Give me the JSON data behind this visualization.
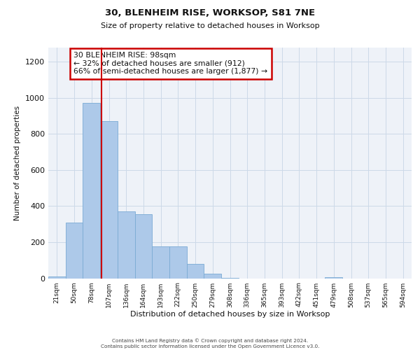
{
  "title_line1": "30, BLENHEIM RISE, WORKSOP, S81 7NE",
  "title_line2": "Size of property relative to detached houses in Worksop",
  "xlabel": "Distribution of detached houses by size in Worksop",
  "ylabel": "Number of detached properties",
  "bar_labels": [
    "21sqm",
    "50sqm",
    "78sqm",
    "107sqm",
    "136sqm",
    "164sqm",
    "193sqm",
    "222sqm",
    "250sqm",
    "279sqm",
    "308sqm",
    "336sqm",
    "365sqm",
    "393sqm",
    "422sqm",
    "451sqm",
    "479sqm",
    "508sqm",
    "537sqm",
    "565sqm",
    "594sqm"
  ],
  "bar_values": [
    10,
    310,
    970,
    870,
    370,
    355,
    175,
    175,
    80,
    25,
    3,
    0,
    0,
    0,
    0,
    0,
    5,
    0,
    0,
    0,
    0
  ],
  "bar_color": "#adc9e9",
  "bar_edge_color": "#7aaad4",
  "grid_color": "#ccd9e8",
  "background_color": "#eef2f8",
  "red_line_x": 2.58,
  "annotation_text": "30 BLENHEIM RISE: 98sqm\n← 32% of detached houses are smaller (912)\n66% of semi-detached houses are larger (1,877) →",
  "annotation_box_color": "#ffffff",
  "annotation_border_color": "#cc0000",
  "ylim": [
    0,
    1280
  ],
  "yticks": [
    0,
    200,
    400,
    600,
    800,
    1000,
    1200
  ],
  "footer_line1": "Contains HM Land Registry data © Crown copyright and database right 2024.",
  "footer_line2": "Contains public sector information licensed under the Open Government Licence v3.0."
}
